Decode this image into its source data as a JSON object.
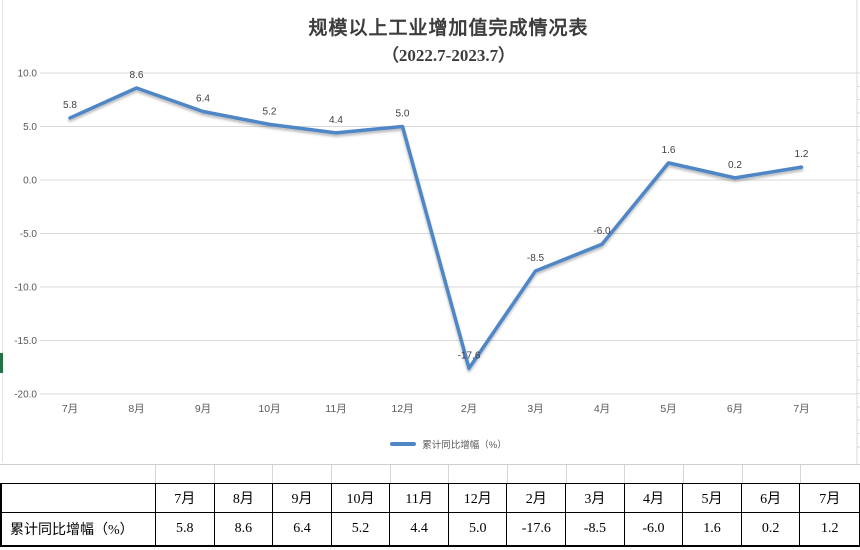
{
  "chart_data": {
    "type": "line",
    "title": "规模以上工业增加值完成情况表",
    "subtitle": "（2022.7-2023.7）",
    "categories": [
      "7月",
      "8月",
      "9月",
      "10月",
      "11月",
      "12月",
      "2月",
      "3月",
      "4月",
      "5月",
      "6月",
      "7月"
    ],
    "series": [
      {
        "name": "累计同比增幅（%）",
        "values": [
          5.8,
          8.6,
          6.4,
          5.2,
          4.4,
          5.0,
          -17.6,
          -8.5,
          -6.0,
          1.6,
          0.2,
          1.2
        ],
        "labels": [
          "5.8",
          "8.6",
          "6.4",
          "5.2",
          "4.4",
          "5.0",
          "-17.6",
          "-8.5",
          "-6.0",
          "1.6",
          "0.2",
          "1.2"
        ]
      }
    ],
    "xlabel": "",
    "ylabel": "",
    "ylim": [
      -20,
      10
    ],
    "ytick_labels": [
      "10.0",
      "5.0",
      "0.0",
      "-5.0",
      "-10.0",
      "-15.0",
      "-20.0"
    ],
    "grid": true,
    "legend_position": "bottom",
    "legend_label": "累计同比增幅（%）"
  },
  "table": {
    "columns": [
      "",
      "7月",
      "8月",
      "9月",
      "10月",
      "11月",
      "12月",
      "2月",
      "3月",
      "4月",
      "5月",
      "6月",
      "7月"
    ],
    "rows": [
      {
        "label": "累计同比增幅（%）",
        "values": [
          "5.8",
          "8.6",
          "6.4",
          "5.2",
          "4.4",
          "5.0",
          "-17.6",
          "-8.5",
          "-6.0",
          "1.6",
          "0.2",
          "1.2"
        ]
      }
    ]
  },
  "colors": {
    "line": "#4f86c6",
    "grid": "#d9d9d9",
    "axis_text": "#595959",
    "data_label_text": "#3f3f3f",
    "title_text": "#3d3d3d",
    "excel_green": "#217346"
  }
}
